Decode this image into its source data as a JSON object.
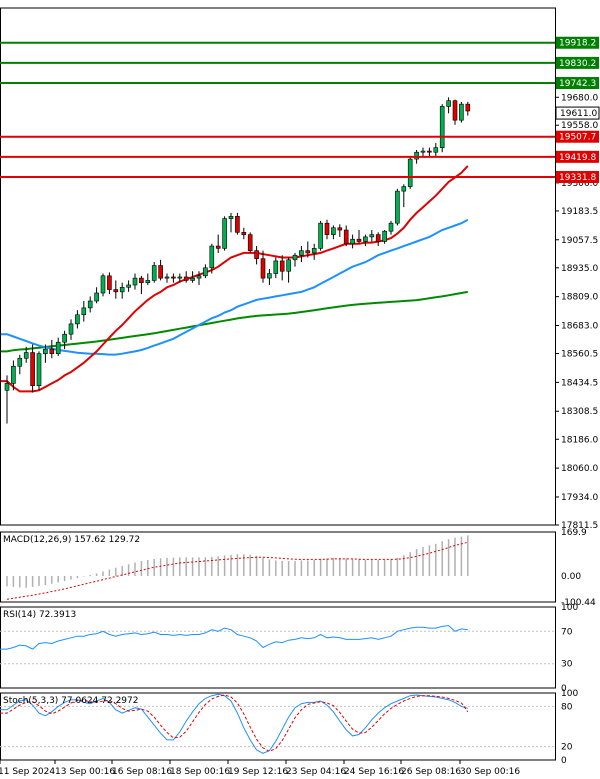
{
  "chart_data": {
    "type": "candlestick",
    "instrument_timeframe": "",
    "y_axis": {
      "ylim": [
        17811.5,
        20070
      ],
      "tick_labels": [
        "19680.0",
        "19558.0",
        "19306.0",
        "19183.5",
        "19057.5",
        "18935.0",
        "18809.0",
        "18683.0",
        "18560.5",
        "18434.5",
        "18308.5",
        "18186.0",
        "18060.0",
        "17934.0",
        "17811.5"
      ],
      "current_price": "19611.0"
    },
    "x_axis": {
      "tick_labels": [
        "11 Sep 2024",
        "13 Sep 00:16",
        "16 Sep 08:16",
        "18 Sep 00:16",
        "19 Sep 12:16",
        "23 Sep 04:16",
        "24 Sep 16:16",
        "26 Sep 08:16",
        "30 Sep 00:16"
      ]
    },
    "levels": [
      {
        "value": 19918.2,
        "label": "19918.2",
        "color": "#008000"
      },
      {
        "value": 19830.2,
        "label": "19830.2",
        "color": "#008000"
      },
      {
        "value": 19742.3,
        "label": "19742.3",
        "color": "#008000"
      },
      {
        "value": 19507.7,
        "label": "19507.7",
        "color": "#e00000"
      },
      {
        "value": 19419.8,
        "label": "19419.8",
        "color": "#e00000"
      },
      {
        "value": 19331.8,
        "label": "19331.8",
        "color": "#e00000"
      }
    ],
    "candles": [
      [
        18400,
        18465,
        18255,
        18430
      ],
      [
        18430,
        18530,
        18400,
        18505
      ],
      [
        18505,
        18555,
        18470,
        18540
      ],
      [
        18540,
        18590,
        18520,
        18565
      ],
      [
        18565,
        18600,
        18390,
        18420
      ],
      [
        18420,
        18570,
        18400,
        18560
      ],
      [
        18560,
        18600,
        18520,
        18580
      ],
      [
        18580,
        18620,
        18540,
        18560
      ],
      [
        18560,
        18630,
        18550,
        18610
      ],
      [
        18610,
        18660,
        18580,
        18645
      ],
      [
        18645,
        18710,
        18620,
        18690
      ],
      [
        18690,
        18750,
        18670,
        18730
      ],
      [
        18730,
        18790,
        18700,
        18760
      ],
      [
        18760,
        18810,
        18740,
        18790
      ],
      [
        18790,
        18850,
        18780,
        18825
      ],
      [
        18825,
        18910,
        18810,
        18900
      ],
      [
        18900,
        18915,
        18820,
        18840
      ],
      [
        18840,
        18880,
        18800,
        18830
      ],
      [
        18830,
        18870,
        18800,
        18850
      ],
      [
        18850,
        18880,
        18830,
        18860
      ],
      [
        18860,
        18910,
        18840,
        18890
      ],
      [
        18890,
        18900,
        18820,
        18870
      ],
      [
        18870,
        18910,
        18860,
        18880
      ],
      [
        18880,
        18960,
        18870,
        18945
      ],
      [
        18945,
        18970,
        18880,
        18890
      ],
      [
        18890,
        18910,
        18870,
        18895
      ],
      [
        18895,
        18910,
        18870,
        18890
      ],
      [
        18890,
        18910,
        18870,
        18895
      ],
      [
        18895,
        18920,
        18870,
        18880
      ],
      [
        18880,
        18920,
        18870,
        18890
      ],
      [
        18890,
        18920,
        18860,
        18900
      ],
      [
        18900,
        18950,
        18890,
        18935
      ],
      [
        18935,
        19040,
        18910,
        19030
      ],
      [
        19030,
        19080,
        19000,
        19020
      ],
      [
        19020,
        19160,
        19010,
        19150
      ],
      [
        19150,
        19175,
        19090,
        19160
      ],
      [
        19160,
        19175,
        19080,
        19090
      ],
      [
        19090,
        19110,
        19060,
        19080
      ],
      [
        19080,
        19090,
        19000,
        19010
      ],
      [
        19010,
        19030,
        18950,
        18975
      ],
      [
        18975,
        19010,
        18870,
        18890
      ],
      [
        18890,
        18930,
        18860,
        18910
      ],
      [
        18910,
        18980,
        18890,
        18965
      ],
      [
        18965,
        18990,
        18880,
        18920
      ],
      [
        18920,
        18980,
        18870,
        18970
      ],
      [
        18970,
        19000,
        18940,
        18990
      ],
      [
        18990,
        19030,
        18960,
        19010
      ],
      [
        19010,
        19050,
        18980,
        19000
      ],
      [
        19000,
        19040,
        18970,
        19020
      ],
      [
        19020,
        19140,
        19010,
        19130
      ],
      [
        19130,
        19145,
        19060,
        19080
      ],
      [
        19080,
        19120,
        19060,
        19110
      ],
      [
        19110,
        19125,
        19070,
        19100
      ],
      [
        19100,
        19120,
        19030,
        19040
      ],
      [
        19040,
        19080,
        19020,
        19060
      ],
      [
        19060,
        19100,
        19040,
        19050
      ],
      [
        19050,
        19080,
        19030,
        19070
      ],
      [
        19070,
        19100,
        19050,
        19080
      ],
      [
        19080,
        19090,
        19030,
        19050
      ],
      [
        19050,
        19100,
        19040,
        19095
      ],
      [
        19095,
        19140,
        19080,
        19130
      ],
      [
        19130,
        19280,
        19120,
        19270
      ],
      [
        19270,
        19300,
        19200,
        19290
      ],
      [
        19290,
        19420,
        19280,
        19410
      ],
      [
        19410,
        19450,
        19390,
        19440
      ],
      [
        19440,
        19460,
        19420,
        19445
      ],
      [
        19445,
        19460,
        19420,
        19440
      ],
      [
        19440,
        19480,
        19420,
        19460
      ],
      [
        19460,
        19650,
        19440,
        19640
      ],
      [
        19640,
        19680,
        19610,
        19665
      ],
      [
        19665,
        19670,
        19560,
        19580
      ],
      [
        19580,
        19660,
        19570,
        19650
      ],
      [
        19650,
        19660,
        19600,
        19620
      ]
    ],
    "ema_red": [
      18440,
      18415,
      18395,
      18395,
      18395,
      18400,
      18415,
      18430,
      18445,
      18465,
      18480,
      18500,
      18520,
      18545,
      18570,
      18600,
      18630,
      18660,
      18685,
      18715,
      18745,
      18770,
      18795,
      18815,
      18830,
      18850,
      18860,
      18875,
      18885,
      18895,
      18905,
      18915,
      18925,
      18940,
      18960,
      18980,
      18990,
      19000,
      19000,
      19000,
      18995,
      18990,
      18985,
      18980,
      18980,
      18980,
      18985,
      18990,
      18995,
      19000,
      19010,
      19020,
      19030,
      19040,
      19040,
      19040,
      19045,
      19045,
      19050,
      19055,
      19065,
      19085,
      19110,
      19145,
      19175,
      19200,
      19225,
      19250,
      19280,
      19310,
      19330,
      19350,
      19380
    ],
    "ema_blue": [
      18645,
      18635,
      18625,
      18615,
      18605,
      18595,
      18588,
      18582,
      18576,
      18572,
      18568,
      18564,
      18562,
      18560,
      18560,
      18558,
      18556,
      18556,
      18560,
      18565,
      18570,
      18576,
      18585,
      18595,
      18605,
      18615,
      18625,
      18640,
      18655,
      18670,
      18685,
      18700,
      18715,
      18725,
      18740,
      18750,
      18765,
      18775,
      18785,
      18795,
      18800,
      18805,
      18810,
      18815,
      18820,
      18825,
      18830,
      18840,
      18850,
      18865,
      18880,
      18895,
      18910,
      18925,
      18940,
      18950,
      18960,
      18975,
      18990,
      19000,
      19010,
      19020,
      19030,
      19040,
      19050,
      19060,
      19070,
      19085,
      19100,
      19110,
      19120,
      19130,
      19145
    ],
    "ema_green": [
      18570,
      18575,
      18578,
      18580,
      18583,
      18586,
      18589,
      18592,
      18595,
      18598,
      18601,
      18604,
      18607,
      18610,
      18613,
      18617,
      18621,
      18625,
      18629,
      18633,
      18637,
      18641,
      18645,
      18649,
      18654,
      18659,
      18664,
      18669,
      18674,
      18679,
      18684,
      18689,
      18694,
      18699,
      18704,
      18709,
      18714,
      18718,
      18722,
      18725,
      18727,
      18729,
      18731,
      18733,
      18735,
      18738,
      18742,
      18746,
      18750,
      18754,
      18758,
      18762,
      18766,
      18770,
      18773,
      18776,
      18778,
      18780,
      18782,
      18784,
      18786,
      18788,
      18790,
      18792,
      18794,
      18798,
      18802,
      18806,
      18810,
      18815,
      18820,
      18825,
      18830
    ],
    "macd": {
      "label": "MACD(12,26,9) 157.62 129.72",
      "ticks": [
        "169.9",
        "0.00",
        "-100.44"
      ],
      "range": [
        -100.44,
        169.9
      ],
      "histogram": [
        -40,
        -42,
        -44,
        -45,
        -42,
        -38,
        -35,
        -30,
        -25,
        -20,
        -14,
        -8,
        -2,
        4,
        10,
        18,
        25,
        32,
        38,
        45,
        52,
        58,
        62,
        66,
        68,
        70,
        71,
        72,
        72,
        72,
        72,
        72,
        74,
        76,
        80,
        82,
        84,
        84,
        82,
        78,
        70,
        64,
        60,
        58,
        58,
        58,
        60,
        60,
        62,
        66,
        68,
        70,
        70,
        68,
        66,
        64,
        62,
        62,
        62,
        62,
        64,
        70,
        80,
        92,
        104,
        112,
        118,
        124,
        134,
        142,
        148,
        152,
        157
      ],
      "signal": [
        -90,
        -86,
        -82,
        -78,
        -74,
        -70,
        -65,
        -60,
        -55,
        -50,
        -44,
        -38,
        -32,
        -26,
        -20,
        -14,
        -8,
        -2,
        4,
        10,
        16,
        22,
        28,
        34,
        38,
        42,
        46,
        50,
        52,
        54,
        56,
        58,
        60,
        62,
        64,
        66,
        68,
        70,
        71,
        72,
        72,
        71,
        70,
        68,
        66,
        65,
        64,
        64,
        64,
        64,
        65,
        66,
        66,
        66,
        66,
        65,
        64,
        64,
        64,
        64,
        64,
        65,
        67,
        71,
        76,
        82,
        88,
        95,
        102,
        110,
        118,
        124,
        130
      ]
    },
    "rsi": {
      "label": "RSI(14) 72.3913",
      "ticks": [
        "100",
        "70",
        "30",
        "0"
      ],
      "range": [
        0,
        100
      ],
      "values": [
        48,
        50,
        53,
        52,
        48,
        55,
        56,
        55,
        58,
        60,
        62,
        64,
        64,
        66,
        67,
        70,
        66,
        64,
        66,
        67,
        68,
        66,
        67,
        69,
        66,
        66,
        65,
        66,
        65,
        66,
        66,
        68,
        72,
        70,
        74,
        72,
        66,
        64,
        62,
        58,
        50,
        54,
        57,
        56,
        59,
        60,
        62,
        61,
        62,
        66,
        62,
        63,
        62,
        60,
        60,
        60,
        61,
        62,
        60,
        62,
        64,
        70,
        72,
        74,
        75,
        75,
        74,
        74,
        76,
        77,
        70,
        73,
        72
      ]
    },
    "stoch": {
      "label": "Stoch(5,3,3) 77.0624 72.2972",
      "ticks": [
        "100",
        "80",
        "20",
        "0"
      ],
      "range": [
        0,
        100
      ],
      "k": [
        75,
        82,
        88,
        90,
        82,
        70,
        66,
        72,
        80,
        86,
        90,
        90,
        86,
        84,
        88,
        92,
        86,
        75,
        70,
        74,
        78,
        76,
        64,
        52,
        40,
        30,
        30,
        42,
        58,
        72,
        84,
        92,
        96,
        98,
        96,
        88,
        70,
        48,
        30,
        15,
        10,
        14,
        28,
        46,
        64,
        78,
        84,
        86,
        86,
        88,
        82,
        72,
        58,
        45,
        36,
        38,
        48,
        60,
        70,
        78,
        84,
        88,
        92,
        96,
        97,
        96,
        95,
        94,
        92,
        90,
        86,
        80,
        77
      ],
      "d": [
        70,
        76,
        82,
        86,
        87,
        81,
        73,
        69,
        73,
        79,
        85,
        89,
        89,
        87,
        86,
        88,
        89,
        84,
        77,
        73,
        74,
        76,
        73,
        64,
        52,
        41,
        33,
        34,
        43,
        57,
        71,
        83,
        91,
        95,
        97,
        94,
        85,
        69,
        49,
        31,
        18,
        13,
        17,
        29,
        46,
        63,
        75,
        83,
        85,
        87,
        85,
        81,
        71,
        58,
        46,
        40,
        41,
        49,
        59,
        69,
        77,
        83,
        88,
        92,
        95,
        96,
        96,
        95,
        94,
        92,
        89,
        85,
        72
      ]
    }
  }
}
